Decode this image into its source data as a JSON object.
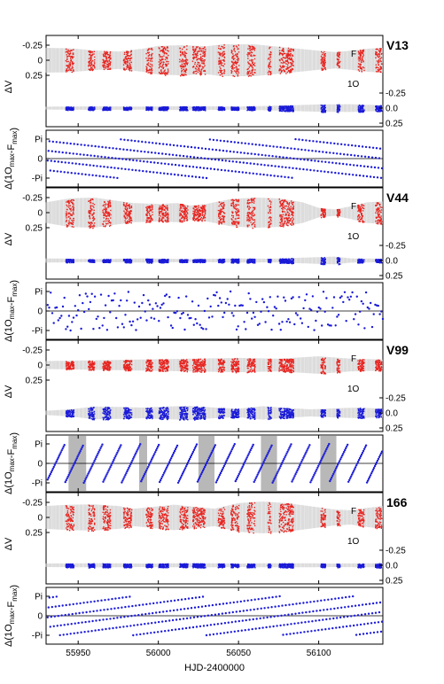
{
  "chart_data": {
    "type": "scatter",
    "x_axis": {
      "label": "HJD-2400000",
      "range": [
        55930,
        56140
      ],
      "ticks": [
        55950,
        56000,
        56050,
        56100
      ],
      "tick_labels": [
        "55950",
        "56000",
        "56050",
        "56100"
      ]
    },
    "amp_ylabel": "ΔV",
    "phase_ylabel": "Δ(1O",
    "phase_ylabel_sub1": "max",
    "phase_ylabel_mid": "-F",
    "phase_ylabel_sub2": "max",
    "phase_ylabel_end": ")",
    "amp_left_ticks": [
      "-0.25",
      "0",
      "0.25"
    ],
    "amp_right_ticks": [
      "-0.25",
      "0.0",
      "0.25"
    ],
    "phase_ticks": [
      "Pi",
      "0",
      "-Pi"
    ],
    "mode_labels": {
      "fundamental": "F",
      "first_overtone": "1O"
    },
    "colors": {
      "fundamental": "#e8231f",
      "first_overtone": "#1a1ad8",
      "model_envelope": "#d4d4d4",
      "phase_points": "#1a1ad8",
      "gap_shading": "#b8b8b8"
    },
    "stars": [
      {
        "name": "V13",
        "f_env": [
          [
            55930,
            0.78
          ],
          [
            55945,
            0.75
          ],
          [
            55960,
            0.62
          ],
          [
            55975,
            0.55
          ],
          [
            55990,
            0.72
          ],
          [
            56000,
            0.9
          ],
          [
            56015,
            0.95
          ],
          [
            56030,
            0.88
          ],
          [
            56040,
            1.0
          ],
          [
            56060,
            1.0
          ],
          [
            56075,
            0.85
          ],
          [
            56090,
            0.7
          ],
          [
            56100,
            0.6
          ],
          [
            56110,
            0.52
          ],
          [
            56120,
            0.6
          ],
          [
            56130,
            0.72
          ],
          [
            56140,
            0.78
          ]
        ],
        "o_env": [
          [
            55930,
            0.2
          ],
          [
            55960,
            0.25
          ],
          [
            55990,
            0.22
          ],
          [
            56020,
            0.28
          ],
          [
            56050,
            0.22
          ],
          [
            56080,
            0.38
          ],
          [
            56100,
            0.52
          ],
          [
            56120,
            0.55
          ],
          [
            56140,
            0.4
          ]
        ],
        "phase_kind": "wrap",
        "phase_slope": 0.9,
        "shaded_gaps": []
      },
      {
        "name": "V44",
        "f_env": [
          [
            55930,
            0.65
          ],
          [
            55945,
            0.9
          ],
          [
            55960,
            0.95
          ],
          [
            55970,
            0.8
          ],
          [
            55985,
            0.6
          ],
          [
            56000,
            0.55
          ],
          [
            56012,
            0.6
          ],
          [
            56020,
            0.45
          ],
          [
            56030,
            0.55
          ],
          [
            56045,
            0.85
          ],
          [
            56060,
            0.95
          ],
          [
            56075,
            0.9
          ],
          [
            56090,
            0.65
          ],
          [
            56100,
            0.3
          ],
          [
            56110,
            0.2
          ],
          [
            56120,
            0.4
          ],
          [
            56130,
            0.65
          ],
          [
            56140,
            0.7
          ]
        ],
        "o_env": [
          [
            55930,
            0.3
          ],
          [
            55960,
            0.2
          ],
          [
            55990,
            0.3
          ],
          [
            56020,
            0.2
          ],
          [
            56050,
            0.3
          ],
          [
            56070,
            0.25
          ],
          [
            56090,
            0.4
          ],
          [
            56110,
            0.55
          ],
          [
            56120,
            0.3
          ],
          [
            56140,
            0.25
          ]
        ],
        "phase_kind": "noisy",
        "phase_slope": 0.45,
        "shaded_gaps": []
      },
      {
        "name": "V99",
        "f_env": [
          [
            55930,
            0.25
          ],
          [
            55960,
            0.3
          ],
          [
            55990,
            0.35
          ],
          [
            56020,
            0.4
          ],
          [
            56050,
            0.45
          ],
          [
            56075,
            0.4
          ],
          [
            56100,
            0.55
          ],
          [
            56120,
            0.4
          ],
          [
            56140,
            0.35
          ]
        ],
        "o_env": [
          [
            55930,
            0.3
          ],
          [
            55945,
            0.5
          ],
          [
            55960,
            0.9
          ],
          [
            55975,
            0.85
          ],
          [
            55990,
            0.75
          ],
          [
            56005,
            0.9
          ],
          [
            56020,
            1.0
          ],
          [
            56035,
            0.75
          ],
          [
            56050,
            0.6
          ],
          [
            56065,
            0.95
          ],
          [
            56080,
            0.7
          ],
          [
            56095,
            0.5
          ],
          [
            56110,
            0.65
          ],
          [
            56125,
            0.75
          ],
          [
            56140,
            0.6
          ]
        ],
        "phase_kind": "wrap",
        "phase_slope": 0.17,
        "shaded_gaps": [
          [
            55944,
            55955
          ],
          [
            55988,
            55993
          ],
          [
            56025,
            56035
          ],
          [
            56064,
            56074
          ],
          [
            56101,
            56111
          ]
        ]
      },
      {
        "name": "166",
        "f_env": [
          [
            55930,
            0.72
          ],
          [
            55945,
            0.8
          ],
          [
            55960,
            0.82
          ],
          [
            55975,
            0.72
          ],
          [
            55985,
            0.55
          ],
          [
            56000,
            0.7
          ],
          [
            56010,
            0.8
          ],
          [
            56025,
            0.65
          ],
          [
            56035,
            0.55
          ],
          [
            56050,
            0.9
          ],
          [
            56065,
            1.0
          ],
          [
            56080,
            0.9
          ],
          [
            56095,
            0.7
          ],
          [
            56110,
            0.5
          ],
          [
            56120,
            0.45
          ],
          [
            56130,
            0.6
          ],
          [
            56140,
            0.72
          ]
        ],
        "o_env": [
          [
            55930,
            0.25
          ],
          [
            55960,
            0.3
          ],
          [
            55990,
            0.25
          ],
          [
            56020,
            0.3
          ],
          [
            56050,
            0.25
          ],
          [
            56080,
            0.3
          ],
          [
            56110,
            0.25
          ],
          [
            56140,
            0.3
          ]
        ],
        "phase_kind": "wrap",
        "phase_slope": 0.92,
        "shaded_gaps": []
      }
    ],
    "observation_segments": [
      [
        55942,
        55947
      ],
      [
        55956,
        55960
      ],
      [
        55965,
        55970
      ],
      [
        55978,
        55983
      ],
      [
        55992,
        55996
      ],
      [
        56000,
        56006
      ],
      [
        56013,
        56018
      ],
      [
        56021,
        56029
      ],
      [
        56037,
        56041
      ],
      [
        56045,
        56050
      ],
      [
        56055,
        56060
      ],
      [
        56068,
        56070
      ],
      [
        56075,
        56084
      ],
      [
        56101,
        56104
      ],
      [
        56111,
        56113
      ],
      [
        56124,
        56128
      ],
      [
        56135,
        56139
      ]
    ]
  }
}
